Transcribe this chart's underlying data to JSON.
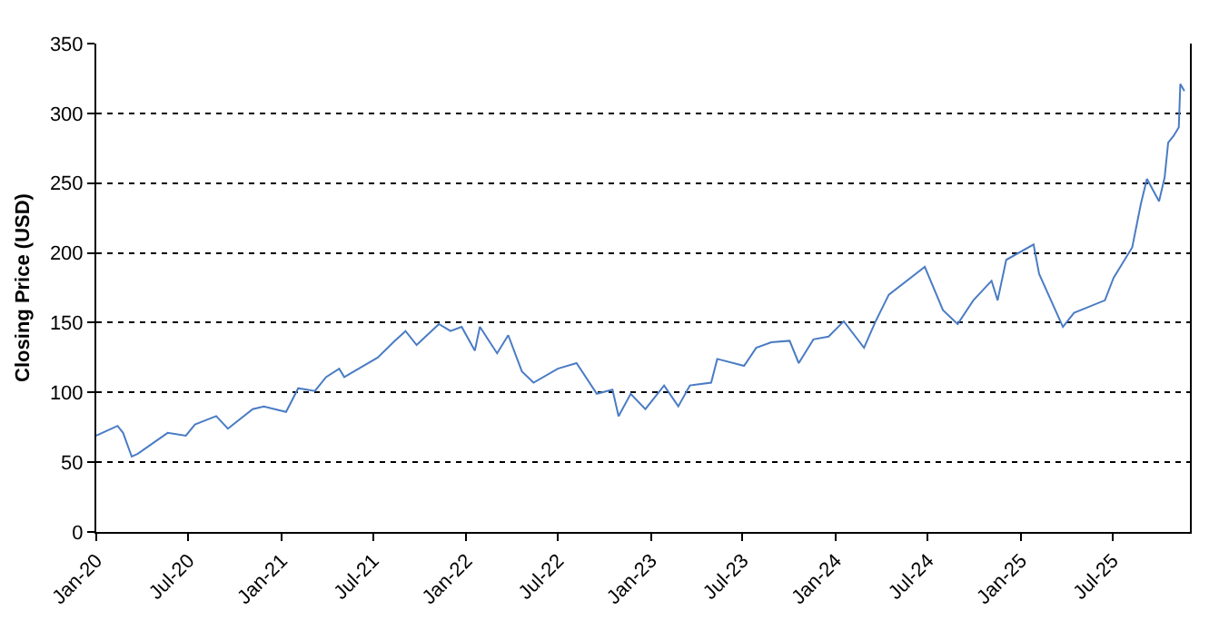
{
  "chart_data": {
    "type": "line",
    "ylabel": "Closing Price (USD)",
    "x": [
      "2020-01-01",
      "2020-02-12",
      "2020-02-23",
      "2020-03-11",
      "2020-03-23",
      "2020-05-21",
      "2020-06-26",
      "2020-07-14",
      "2020-08-25",
      "2020-09-17",
      "2020-11-05",
      "2020-11-27",
      "2021-01-10",
      "2021-02-03",
      "2021-03-08",
      "2021-03-30",
      "2021-04-25",
      "2021-05-05",
      "2021-07-10",
      "2021-08-10",
      "2021-09-03",
      "2021-09-25",
      "2021-11-08",
      "2021-12-01",
      "2021-12-23",
      "2022-01-18",
      "2022-01-28",
      "2022-03-03",
      "2022-03-25",
      "2022-04-21",
      "2022-05-14",
      "2022-07-01",
      "2022-08-07",
      "2022-09-16",
      "2022-10-17",
      "2022-10-29",
      "2022-11-22",
      "2022-12-21",
      "2023-01-27",
      "2023-02-24",
      "2023-03-19",
      "2023-04-30",
      "2023-05-12",
      "2023-07-04",
      "2023-07-28",
      "2023-08-27",
      "2023-10-02",
      "2023-10-20",
      "2023-11-18",
      "2023-12-18",
      "2024-01-17",
      "2024-02-26",
      "2024-03-20",
      "2024-04-15",
      "2024-06-25",
      "2024-07-31",
      "2024-08-29",
      "2024-09-29",
      "2024-11-04",
      "2024-11-16",
      "2024-12-03",
      "2025-01-26",
      "2025-02-06",
      "2025-03-25",
      "2025-04-16",
      "2025-06-16",
      "2025-07-03",
      "2025-08-09",
      "2025-08-26",
      "2025-09-07",
      "2025-10-01",
      "2025-10-12",
      "2025-10-19",
      "2025-10-30",
      "2025-11-09",
      "2025-11-12",
      "2025-11-20"
    ],
    "series": [
      {
        "color": "#4a7cc4",
        "values": [
          69,
          76,
          71,
          54,
          56,
          71,
          69,
          77,
          83,
          74,
          88,
          90,
          86,
          103,
          101,
          111,
          117,
          111,
          125,
          136,
          144,
          134,
          149,
          144,
          147,
          130,
          147,
          128,
          141,
          115,
          107,
          117,
          121,
          99,
          102,
          83,
          99,
          88,
          105,
          90,
          105,
          107,
          124,
          119,
          132,
          136,
          137,
          121,
          138,
          140,
          151,
          132,
          151,
          170,
          190,
          159,
          149,
          166,
          180,
          166,
          195,
          206,
          185,
          147,
          157,
          166,
          182,
          204,
          235,
          253,
          237,
          254,
          279,
          284,
          290,
          321,
          316
        ]
      }
    ],
    "xlim": [
      "2020-01-01",
      "2025-12-01"
    ],
    "xticks": [
      {
        "value": "2020-01-01",
        "label": "Jan-20"
      },
      {
        "value": "2020-07-01",
        "label": "Jul-20"
      },
      {
        "value": "2021-01-01",
        "label": "Jan-21"
      },
      {
        "value": "2021-07-01",
        "label": "Jul-21"
      },
      {
        "value": "2022-01-01",
        "label": "Jan-22"
      },
      {
        "value": "2022-07-01",
        "label": "Jul-22"
      },
      {
        "value": "2023-01-01",
        "label": "Jan-23"
      },
      {
        "value": "2023-07-01",
        "label": "Jul-23"
      },
      {
        "value": "2024-01-01",
        "label": "Jan-24"
      },
      {
        "value": "2024-07-01",
        "label": "Jul-24"
      },
      {
        "value": "2025-01-01",
        "label": "Jan-25"
      },
      {
        "value": "2025-07-01",
        "label": "Jul-25"
      }
    ],
    "ylim": [
      0,
      350
    ],
    "yticks": [
      0,
      50,
      100,
      150,
      200,
      250,
      300,
      350
    ],
    "grid": "y",
    "marker": "none",
    "line_style": "solid"
  }
}
